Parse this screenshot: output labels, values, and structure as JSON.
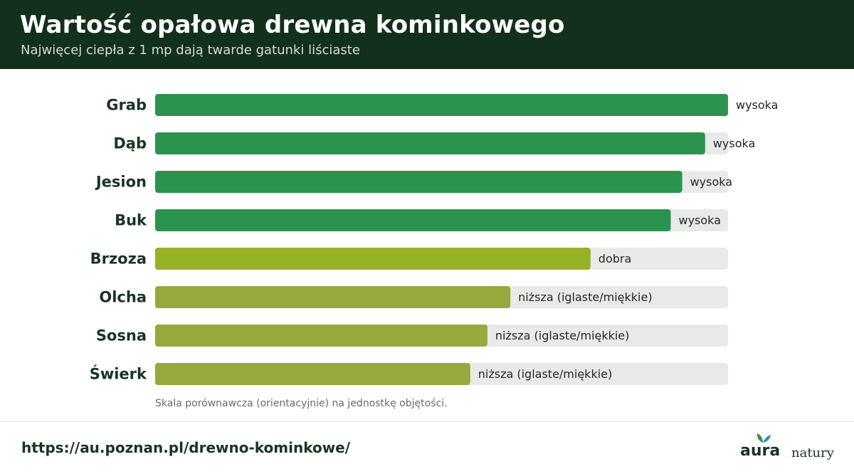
{
  "header": {
    "title": "Wartość opałowa drewna kominkowego",
    "subtitle": "Najwięcej ciepła z 1 mp dają twarde gatunki liściaste"
  },
  "chart_data": {
    "type": "bar",
    "orientation": "horizontal",
    "title": "Wartość opałowa drewna kominkowego",
    "subtitle": "Najwięcej ciepła z 1 mp dają twarde gatunki liściaste",
    "categories": [
      "Grab",
      "Dąb",
      "Jesion",
      "Buk",
      "Brzoza",
      "Olcha",
      "Sosna",
      "Świerk"
    ],
    "values": [
      100,
      96,
      92,
      90,
      76,
      62,
      58,
      55
    ],
    "data_labels": [
      "wysoka",
      "wysoka",
      "wysoka",
      "wysoka",
      "dobra",
      "niższa (iglaste/miękkie)",
      "niższa (iglaste/miękkie)",
      "niższa (iglaste/miękkie)"
    ],
    "bar_colors": [
      "#2b934e",
      "#2b934e",
      "#2b934e",
      "#2b934e",
      "#96b227",
      "#96a93c",
      "#96a93c",
      "#96a93c"
    ],
    "track_color": "#e8eae7",
    "xlim": [
      0,
      100
    ],
    "grid": false,
    "legend": "none",
    "note": "Skala porównawcza (orientacyjnie) na jednostkę objętości."
  },
  "footer": {
    "url": "https://au.poznan.pl/drewno-kominkowe/",
    "logo_word": "aura",
    "logo_tagline": "natury"
  },
  "colors": {
    "header_bg": "#12301c",
    "text_dark": "#173522"
  },
  "icons": {
    "logo_leaf": "leaf-icon"
  }
}
